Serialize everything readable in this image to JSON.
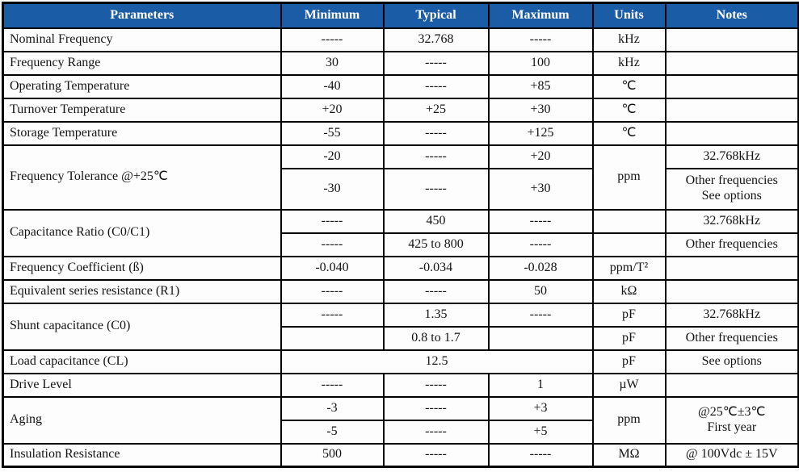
{
  "colors": {
    "header_bg": "#1B5CA7",
    "header_text": "#FFFFFF",
    "border": "#000000",
    "text": "#141414"
  },
  "table": {
    "columns": [
      "Parameters",
      "Minimum",
      "Typical",
      "Maximum",
      "Units",
      "Notes"
    ],
    "rows": [
      {
        "k": "",
        "cells": [
          {
            "t": "Nominal Frequency",
            "s": "param",
            "n": "param-nominal-frequency"
          },
          {
            "t": "-----",
            "n": "minimum-cell"
          },
          {
            "t": "32.768",
            "n": "typical-cell"
          },
          {
            "t": "-----",
            "n": "maximum-cell"
          },
          {
            "t": "kHz",
            "n": "units-cell"
          },
          {
            "t": "",
            "n": "notes-cell"
          }
        ]
      },
      {
        "k": "",
        "cells": [
          {
            "t": "Frequency Range",
            "s": "param",
            "n": "param-frequency-range"
          },
          {
            "t": "30",
            "n": "minimum-cell"
          },
          {
            "t": "-----",
            "n": "typical-cell"
          },
          {
            "t": "100",
            "n": "maximum-cell"
          },
          {
            "t": "kHz",
            "n": "units-cell"
          },
          {
            "t": "",
            "n": "notes-cell"
          }
        ]
      },
      {
        "k": "",
        "cells": [
          {
            "t": "Operating Temperature",
            "s": "param",
            "n": "param-operating-temperature"
          },
          {
            "t": "-40",
            "n": "minimum-cell"
          },
          {
            "t": "-----",
            "n": "typical-cell"
          },
          {
            "t": "+85",
            "n": "maximum-cell"
          },
          {
            "t": "℃",
            "n": "units-cell"
          },
          {
            "t": "",
            "n": "notes-cell"
          }
        ]
      },
      {
        "k": "",
        "cells": [
          {
            "t": "Turnover Temperature",
            "s": "param",
            "n": "param-turnover-temperature"
          },
          {
            "t": "+20",
            "n": "minimum-cell"
          },
          {
            "t": "+25",
            "n": "typical-cell"
          },
          {
            "t": "+30",
            "n": "maximum-cell"
          },
          {
            "t": "℃",
            "n": "units-cell"
          },
          {
            "t": "",
            "n": "notes-cell"
          }
        ]
      },
      {
        "k": "",
        "cells": [
          {
            "t": "Storage Temperature",
            "s": "param",
            "n": "param-storage-temperature"
          },
          {
            "t": "-55",
            "n": "minimum-cell"
          },
          {
            "t": "-----",
            "n": "typical-cell"
          },
          {
            "t": "+125",
            "n": "maximum-cell"
          },
          {
            "t": "℃",
            "n": "units-cell"
          },
          {
            "t": "",
            "n": "notes-cell"
          }
        ]
      },
      {
        "k": "",
        "cells": [
          {
            "t": "Frequency Tolerance @+25℃",
            "s": "param",
            "r": 2,
            "n": "param-frequency-tolerance"
          },
          {
            "t": "-20",
            "n": "minimum-cell"
          },
          {
            "t": "-----",
            "n": "typical-cell"
          },
          {
            "t": "+20",
            "n": "maximum-cell"
          },
          {
            "t": "ppm",
            "r": 2,
            "n": "units-cell"
          },
          {
            "t": "32.768kHz",
            "n": "notes-cell"
          }
        ]
      },
      {
        "k": "tall",
        "cells": [
          {
            "t": "-30",
            "s": "sub",
            "n": "minimum-cell"
          },
          {
            "t": "-----",
            "s": "sub",
            "n": "typical-cell"
          },
          {
            "t": "+30",
            "s": "sub",
            "n": "maximum-cell"
          },
          {
            "t": "Other frequencies\nSee options",
            "s": "sub",
            "n": "notes-cell"
          }
        ]
      },
      {
        "k": "",
        "cells": [
          {
            "t": "Capacitance Ratio (C0/C1)",
            "s": "param",
            "r": 2,
            "n": "param-capacitance-ratio"
          },
          {
            "t": "-----",
            "n": "minimum-cell"
          },
          {
            "t": "450",
            "n": "typical-cell"
          },
          {
            "t": "-----",
            "n": "maximum-cell"
          },
          {
            "t": "",
            "n": "units-cell"
          },
          {
            "t": "32.768kHz",
            "n": "notes-cell"
          }
        ]
      },
      {
        "k": "",
        "cells": [
          {
            "t": "-----",
            "s": "sub",
            "n": "minimum-cell"
          },
          {
            "t": "425 to 800",
            "s": "sub",
            "n": "typical-cell"
          },
          {
            "t": "-----",
            "s": "sub",
            "n": "maximum-cell"
          },
          {
            "t": "",
            "s": "sub",
            "n": "units-cell"
          },
          {
            "t": "Other frequencies",
            "s": "sub",
            "n": "notes-cell"
          }
        ]
      },
      {
        "k": "",
        "cells": [
          {
            "t": "Frequency Coefficient (ß)",
            "s": "param",
            "n": "param-frequency-coefficient"
          },
          {
            "t": "-0.040",
            "n": "minimum-cell"
          },
          {
            "t": "-0.034",
            "n": "typical-cell"
          },
          {
            "t": "-0.028",
            "n": "maximum-cell"
          },
          {
            "t": "ppm/T²",
            "n": "units-cell"
          },
          {
            "t": "",
            "n": "notes-cell"
          }
        ]
      },
      {
        "k": "",
        "cells": [
          {
            "t": "Equivalent series resistance (R1)",
            "s": "param",
            "n": "param-equivalent-series-resistance"
          },
          {
            "t": "-----",
            "n": "minimum-cell"
          },
          {
            "t": "-----",
            "n": "typical-cell"
          },
          {
            "t": "50",
            "n": "maximum-cell"
          },
          {
            "t": "kΩ",
            "n": "units-cell"
          },
          {
            "t": "",
            "n": "notes-cell"
          }
        ]
      },
      {
        "k": "",
        "cells": [
          {
            "t": "Shunt capacitance (C0)",
            "s": "param",
            "r": 2,
            "n": "param-shunt-capacitance"
          },
          {
            "t": "-----",
            "n": "minimum-cell"
          },
          {
            "t": "1.35",
            "n": "typical-cell"
          },
          {
            "t": "-----",
            "n": "maximum-cell"
          },
          {
            "t": "pF",
            "n": "units-cell"
          },
          {
            "t": "32.768kHz",
            "n": "notes-cell"
          }
        ]
      },
      {
        "k": "",
        "cells": [
          {
            "t": "",
            "s": "sub",
            "n": "minimum-cell"
          },
          {
            "t": "0.8 to 1.7",
            "s": "sub",
            "n": "typical-cell"
          },
          {
            "t": "",
            "s": "sub",
            "n": "maximum-cell"
          },
          {
            "t": "pF",
            "s": "sub",
            "n": "units-cell"
          },
          {
            "t": "Other frequencies",
            "s": "sub",
            "n": "notes-cell"
          }
        ]
      },
      {
        "k": "",
        "cells": [
          {
            "t": "Load capacitance (CL)",
            "s": "param",
            "n": "param-load-capacitance"
          },
          {
            "t": "12.5",
            "c": 3,
            "n": "merged-value-cell"
          },
          {
            "t": "pF",
            "n": "units-cell"
          },
          {
            "t": "See options",
            "n": "notes-cell"
          }
        ]
      },
      {
        "k": "",
        "cells": [
          {
            "t": "Drive Level",
            "s": "param",
            "n": "param-drive-level"
          },
          {
            "t": "-----",
            "n": "minimum-cell"
          },
          {
            "t": "-----",
            "n": "typical-cell"
          },
          {
            "t": "1",
            "n": "maximum-cell"
          },
          {
            "t": "µW",
            "n": "units-cell"
          },
          {
            "t": "",
            "n": "notes-cell"
          }
        ]
      },
      {
        "k": "",
        "cells": [
          {
            "t": "Aging",
            "s": "param",
            "r": 2,
            "n": "param-aging"
          },
          {
            "t": "-3",
            "n": "minimum-cell"
          },
          {
            "t": "-----",
            "n": "typical-cell"
          },
          {
            "t": "+3",
            "n": "maximum-cell"
          },
          {
            "t": "ppm",
            "r": 2,
            "n": "units-cell"
          },
          {
            "t": "@25℃±3℃\nFirst year",
            "r": 2,
            "n": "notes-cell"
          }
        ]
      },
      {
        "k": "",
        "cells": [
          {
            "t": "-5",
            "s": "sub",
            "n": "minimum-cell"
          },
          {
            "t": "-----",
            "s": "sub",
            "n": "typical-cell"
          },
          {
            "t": "+5",
            "s": "sub",
            "n": "maximum-cell"
          }
        ]
      },
      {
        "k": "",
        "cells": [
          {
            "t": "Insulation Resistance",
            "s": "param",
            "n": "param-insulation-resistance"
          },
          {
            "t": "500",
            "n": "minimum-cell"
          },
          {
            "t": "-----",
            "n": "typical-cell"
          },
          {
            "t": "-----",
            "n": "maximum-cell"
          },
          {
            "t": "MΩ",
            "n": "units-cell"
          },
          {
            "t": "@ 100Vdc ± 15V",
            "n": "notes-cell"
          }
        ]
      }
    ]
  }
}
